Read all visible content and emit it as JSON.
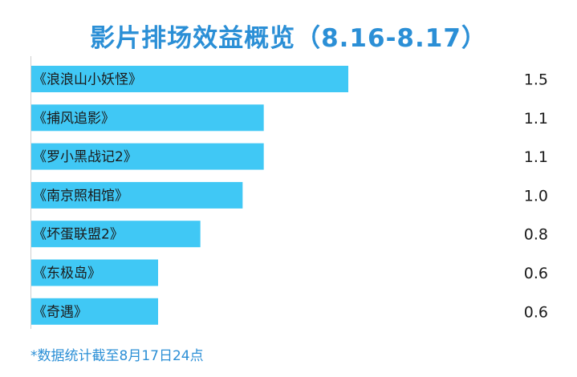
{
  "header": {
    "title": "影片排场效益概览（8.16-8.17）"
  },
  "footer": {
    "note": "*数据统计截至8月17日24点"
  },
  "chart_data": {
    "type": "bar",
    "orientation": "horizontal",
    "title": "影片排场效益概览（8.16-8.17）",
    "categories": [
      "《浪浪山小妖怪》",
      "《捕风追影》",
      "《罗小黑战记2》",
      "《南京照相馆》",
      "《坏蛋联盟2》",
      "《东极岛》",
      "《奇遇》"
    ],
    "value_labels": [
      "1.5",
      "1.1",
      "1.1",
      "1.0",
      "0.8",
      "0.6",
      "0.6"
    ],
    "values": [
      1.5,
      1.1,
      1.1,
      1.0,
      0.8,
      0.6,
      0.6
    ],
    "xlim": [
      0,
      1.5
    ],
    "grid": false,
    "colors": {
      "bar": "#40c8f5",
      "axis": "#cfcfcf",
      "title": "#2b8fd6"
    }
  }
}
